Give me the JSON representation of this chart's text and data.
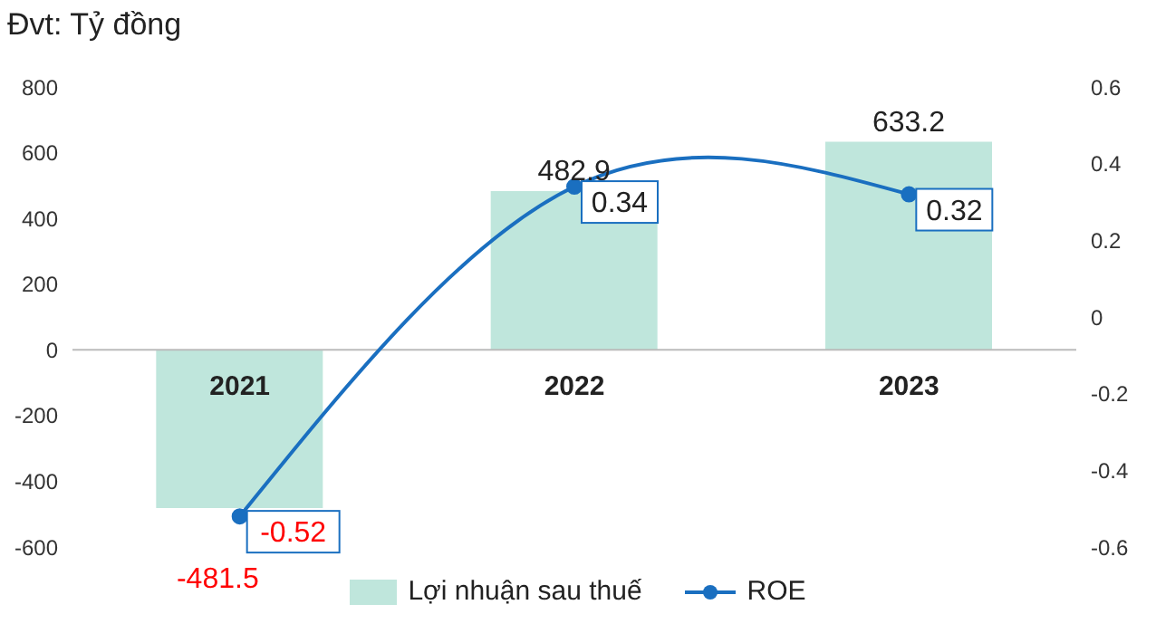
{
  "chart_data": {
    "type": "bar",
    "title": "Đvt: Tỷ đồng",
    "categories": [
      "2021",
      "2022",
      "2023"
    ],
    "series": [
      {
        "name": "Lợi nhuận sau thuế",
        "color": "#bfe6dc",
        "values": [
          -481.5,
          482.9,
          633.2
        ]
      },
      {
        "name": "ROE",
        "type": "line",
        "axis": "y2",
        "color": "#1a6fc0",
        "values": [
          -0.52,
          0.34,
          0.32
        ]
      }
    ],
    "ylim": [
      -600,
      800
    ],
    "yticks": [
      -600,
      -400,
      -200,
      0,
      200,
      400,
      600,
      800
    ],
    "y2lim": [
      -0.6,
      0.6
    ],
    "y2ticks": [
      -0.6,
      -0.4,
      -0.2,
      0,
      0.2,
      0.4,
      0.6
    ],
    "data_labels": true,
    "legend": "bottom",
    "marker": "circle"
  }
}
